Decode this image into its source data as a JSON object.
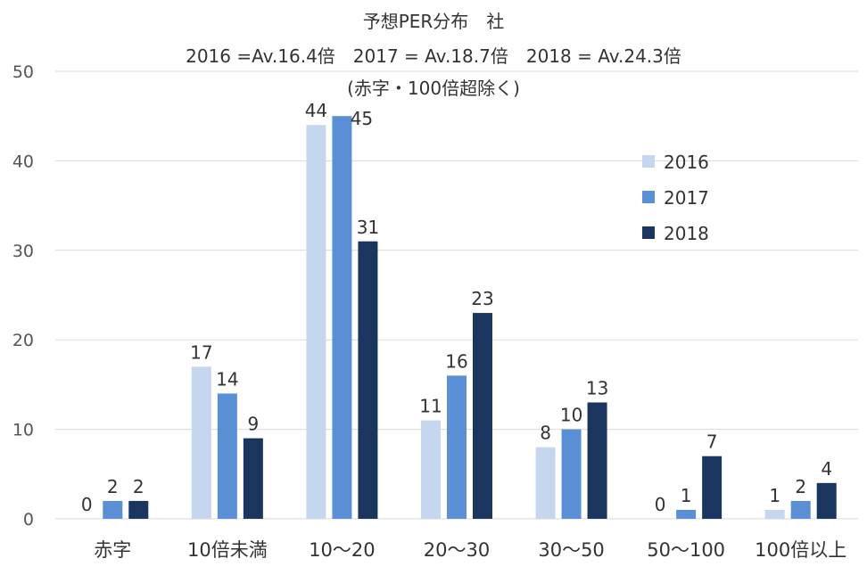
{
  "chart_data": {
    "type": "bar",
    "title_lines": [
      "予想PER分布　社",
      "2016 =Av.16.4倍　2017 = Av.18.7倍　2018 = Av.24.3倍",
      "(赤字・100倍超除く)"
    ],
    "categories": [
      "赤字",
      "10倍未満",
      "10〜20",
      "20〜30",
      "30〜50",
      "50〜100",
      "100倍以上"
    ],
    "series": [
      {
        "name": "2016",
        "color": "#c5d7ef",
        "values": [
          0,
          17,
          44,
          11,
          8,
          0,
          1
        ]
      },
      {
        "name": "2017",
        "color": "#5a8fd6",
        "values": [
          2,
          14,
          45,
          16,
          10,
          1,
          2
        ]
      },
      {
        "name": "2018",
        "color": "#1a355e",
        "values": [
          2,
          9,
          31,
          23,
          13,
          7,
          4
        ]
      }
    ],
    "yticks": [
      "0",
      "10",
      "20",
      "30",
      "40",
      "50"
    ],
    "ylim": [
      0,
      50
    ],
    "grid": true,
    "gridColor": "#d9d9d9",
    "legendPosition": "right"
  }
}
